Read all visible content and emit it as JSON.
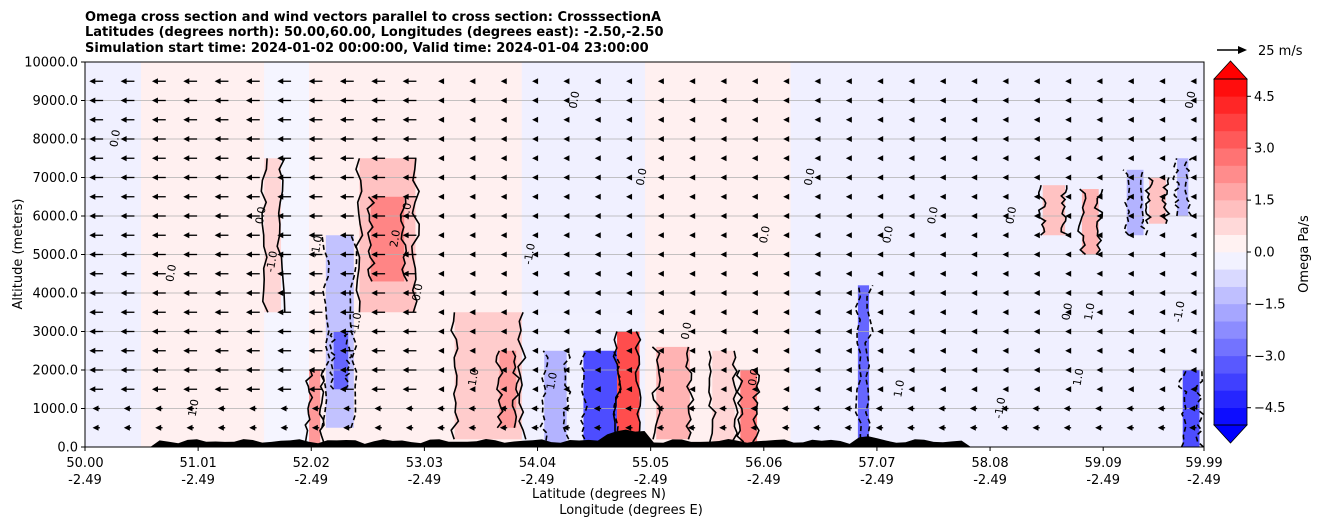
{
  "chart_data": {
    "type": "heatmap",
    "title_lines": [
      "Omega cross section and wind vectors parallel to cross section: CrosssectionA",
      "Latitudes (degrees north): 50.00,60.00, Longitudes (degrees east): -2.50,-2.50",
      "Simulation start time: 2024-01-02 00:00:00, Valid time: 2024-01-04 23:00:00"
    ],
    "xlabel_lines": [
      "Latitude (degrees N)",
      "Longitude (degrees E)"
    ],
    "ylabel": "Altitude (meters)",
    "xlim": [
      50.0,
      59.99
    ],
    "ylim": [
      0,
      10000
    ],
    "x_ticks": [
      {
        "lat": 50.0,
        "label": "50.00",
        "lon_label": "-2.49"
      },
      {
        "lat": 51.01,
        "label": "51.01",
        "lon_label": "-2.49"
      },
      {
        "lat": 52.02,
        "label": "52.02",
        "lon_label": "-2.49"
      },
      {
        "lat": 53.03,
        "label": "53.03",
        "lon_label": "-2.49"
      },
      {
        "lat": 54.04,
        "label": "54.04",
        "lon_label": "-2.49"
      },
      {
        "lat": 55.05,
        "label": "55.05",
        "lon_label": "-2.49"
      },
      {
        "lat": 56.06,
        "label": "56.06",
        "lon_label": "-2.49"
      },
      {
        "lat": 57.07,
        "label": "57.07",
        "lon_label": "-2.49"
      },
      {
        "lat": 58.08,
        "label": "58.08",
        "lon_label": "-2.49"
      },
      {
        "lat": 59.09,
        "label": "59.09",
        "lon_label": "-2.49"
      },
      {
        "lat": 59.99,
        "label": "59.99",
        "lon_label": "-2.49"
      }
    ],
    "y_ticks": [
      {
        "value": 0,
        "label": "0.0"
      },
      {
        "value": 1000,
        "label": "1000.0"
      },
      {
        "value": 2000,
        "label": "2000.0"
      },
      {
        "value": 3000,
        "label": "3000.0"
      },
      {
        "value": 4000,
        "label": "4000.0"
      },
      {
        "value": 5000,
        "label": "5000.0"
      },
      {
        "value": 6000,
        "label": "6000.0"
      },
      {
        "value": 7000,
        "label": "7000.0"
      },
      {
        "value": 8000,
        "label": "8000.0"
      },
      {
        "value": 9000,
        "label": "9000.0"
      },
      {
        "value": 10000,
        "label": "10000.0"
      }
    ],
    "grid": "horizontal",
    "colorbar": {
      "label": "Omega Pa/s",
      "range": [
        -5.0,
        5.0
      ],
      "step": 0.5,
      "extend": "both",
      "ticks": [
        {
          "value": 4.5,
          "label": "4.5"
        },
        {
          "value": 3.0,
          "label": "3.0"
        },
        {
          "value": 1.5,
          "label": "1.5"
        },
        {
          "value": 0.0,
          "label": "0.0"
        },
        {
          "value": -1.5,
          "label": "−1.5"
        },
        {
          "value": -3.0,
          "label": "−3.0"
        },
        {
          "value": -4.5,
          "label": "−4.5"
        }
      ]
    },
    "quiver_key": {
      "label": "25 m/s",
      "value": 25
    },
    "omega_cells": [
      {
        "lat0": 50.0,
        "lat1": 50.5,
        "z0": 0,
        "z1": 10000,
        "omega": -0.3
      },
      {
        "lat0": 50.5,
        "lat1": 51.6,
        "z0": 0,
        "z1": 10000,
        "omega": 0.3
      },
      {
        "lat0": 51.6,
        "lat1": 52.0,
        "z0": 0,
        "z1": 10000,
        "omega": -0.2
      },
      {
        "lat0": 52.0,
        "lat1": 53.9,
        "z0": 0,
        "z1": 10000,
        "omega": 0.3
      },
      {
        "lat0": 53.9,
        "lat1": 55.0,
        "z0": 3500,
        "z1": 10000,
        "omega": -0.3
      },
      {
        "lat0": 55.0,
        "lat1": 56.3,
        "z0": 0,
        "z1": 10000,
        "omega": 0.3
      },
      {
        "lat0": 56.3,
        "lat1": 57.9,
        "z0": 0,
        "z1": 10000,
        "omega": -0.3
      },
      {
        "lat0": 57.9,
        "lat1": 59.99,
        "z0": 0,
        "z1": 10000,
        "omega": -0.3
      },
      {
        "lat0": 52.45,
        "lat1": 52.95,
        "z0": 3500,
        "z1": 7500,
        "omega": 1.2
      },
      {
        "lat0": 52.55,
        "lat1": 52.85,
        "z0": 4300,
        "z1": 6500,
        "omega": 2.4
      },
      {
        "lat0": 51.6,
        "lat1": 51.75,
        "z0": 3500,
        "z1": 7500,
        "omega": 0.8
      },
      {
        "lat0": 52.15,
        "lat1": 52.4,
        "z0": 500,
        "z1": 5500,
        "omega": -1.2
      },
      {
        "lat0": 52.22,
        "lat1": 52.35,
        "z0": 1500,
        "z1": 3000,
        "omega": -3.0
      },
      {
        "lat0": 52.0,
        "lat1": 52.1,
        "z0": 0,
        "z1": 2000,
        "omega": 2.0
      },
      {
        "lat0": 53.3,
        "lat1": 53.9,
        "z0": 200,
        "z1": 3500,
        "omega": 1.0
      },
      {
        "lat0": 53.7,
        "lat1": 53.85,
        "z0": 500,
        "z1": 2500,
        "omega": 2.0
      },
      {
        "lat0": 54.1,
        "lat1": 54.3,
        "z0": 0,
        "z1": 2500,
        "omega": -1.5
      },
      {
        "lat0": 54.45,
        "lat1": 54.75,
        "z0": 0,
        "z1": 2500,
        "omega": -3.5
      },
      {
        "lat0": 54.75,
        "lat1": 54.95,
        "z0": 0,
        "z1": 3000,
        "omega": 3.5
      },
      {
        "lat0": 55.1,
        "lat1": 55.4,
        "z0": 200,
        "z1": 2600,
        "omega": 1.5
      },
      {
        "lat0": 55.6,
        "lat1": 55.8,
        "z0": 0,
        "z1": 2500,
        "omega": 0.8
      },
      {
        "lat0": 55.85,
        "lat1": 56.0,
        "z0": 0,
        "z1": 2000,
        "omega": 2.5
      },
      {
        "lat0": 56.9,
        "lat1": 57.0,
        "z0": 0,
        "z1": 4200,
        "omega": -3.0
      },
      {
        "lat0": 58.55,
        "lat1": 58.75,
        "z0": 5500,
        "z1": 6800,
        "omega": 1.2
      },
      {
        "lat0": 58.9,
        "lat1": 59.05,
        "z0": 5000,
        "z1": 6700,
        "omega": 1.5
      },
      {
        "lat0": 59.3,
        "lat1": 59.45,
        "z0": 5500,
        "z1": 7200,
        "omega": -1.5
      },
      {
        "lat0": 59.5,
        "lat1": 59.65,
        "z0": 5800,
        "z1": 7000,
        "omega": 1.2
      },
      {
        "lat0": 59.8,
        "lat1": 59.95,
        "z0": 0,
        "z1": 2000,
        "omega": -3.5
      },
      {
        "lat0": 59.75,
        "lat1": 59.85,
        "z0": 6000,
        "z1": 7500,
        "omega": -1.5
      }
    ],
    "contour_labels": [
      {
        "lat": 50.3,
        "z": 8000,
        "text": "0.0"
      },
      {
        "lat": 50.8,
        "z": 4500,
        "text": "0.0"
      },
      {
        "lat": 51.0,
        "z": 1000,
        "text": "1.0"
      },
      {
        "lat": 51.6,
        "z": 6000,
        "text": "0.0"
      },
      {
        "lat": 51.7,
        "z": 4800,
        "text": "-1.0"
      },
      {
        "lat": 52.1,
        "z": 5200,
        "text": "-1.0"
      },
      {
        "lat": 52.45,
        "z": 3200,
        "text": "-1.0"
      },
      {
        "lat": 52.8,
        "z": 5400,
        "text": "2.0"
      },
      {
        "lat": 52.9,
        "z": 6100,
        "text": "1.0"
      },
      {
        "lat": 53.0,
        "z": 4000,
        "text": "0.0"
      },
      {
        "lat": 53.5,
        "z": 1800,
        "text": "1.0"
      },
      {
        "lat": 54.0,
        "z": 5000,
        "text": "-1.0"
      },
      {
        "lat": 54.2,
        "z": 1700,
        "text": "1.0"
      },
      {
        "lat": 54.4,
        "z": 9000,
        "text": "0.0"
      },
      {
        "lat": 55.0,
        "z": 7000,
        "text": "0.0"
      },
      {
        "lat": 55.4,
        "z": 3000,
        "text": "0.0"
      },
      {
        "lat": 56.0,
        "z": 1800,
        "text": "0.0"
      },
      {
        "lat": 56.1,
        "z": 5500,
        "text": "0.0"
      },
      {
        "lat": 56.5,
        "z": 7000,
        "text": "0.0"
      },
      {
        "lat": 57.2,
        "z": 5500,
        "text": "0.0"
      },
      {
        "lat": 57.3,
        "z": 1500,
        "text": "1.0"
      },
      {
        "lat": 57.6,
        "z": 6000,
        "text": "0.0"
      },
      {
        "lat": 58.2,
        "z": 1000,
        "text": "-1.0"
      },
      {
        "lat": 58.3,
        "z": 6000,
        "text": "0.0"
      },
      {
        "lat": 58.8,
        "z": 3500,
        "text": "0.0"
      },
      {
        "lat": 58.9,
        "z": 1800,
        "text": "1.0"
      },
      {
        "lat": 59.0,
        "z": 3500,
        "text": "1.0"
      },
      {
        "lat": 59.8,
        "z": 3500,
        "text": "-1.0"
      },
      {
        "lat": 59.9,
        "z": 9000,
        "text": "0.0"
      }
    ],
    "wind_vectors": {
      "direction": "toward decreasing latitude",
      "bands": [
        {
          "lat0": 50.0,
          "lat1": 53.1,
          "speed_ms": 15
        },
        {
          "lat0": 53.1,
          "lat1": 55.0,
          "speed_ms": 6
        },
        {
          "lat0": 55.0,
          "lat1": 59.99,
          "speed_ms": 5
        }
      ],
      "near_surface_speed_ms": 8
    }
  }
}
